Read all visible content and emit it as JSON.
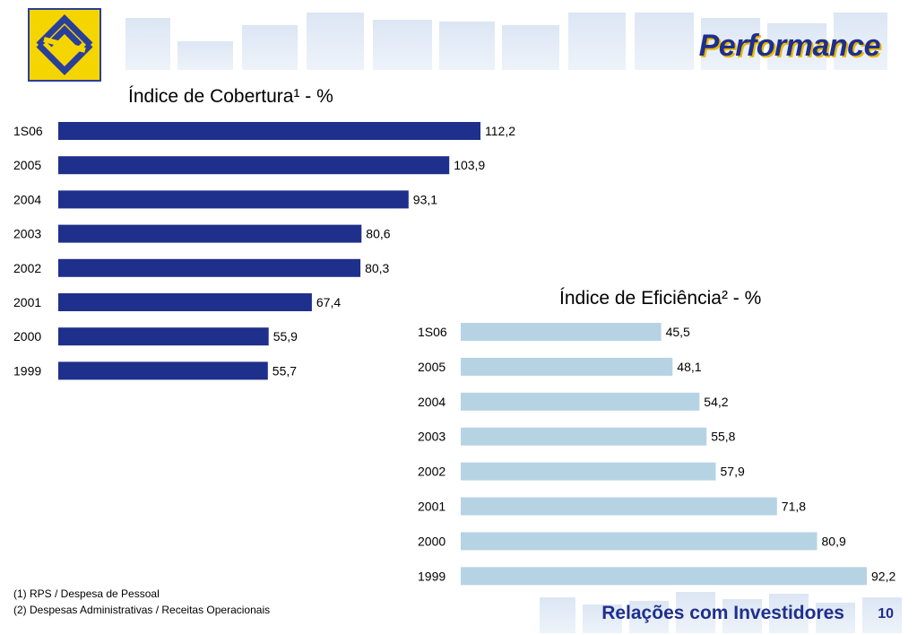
{
  "header": {
    "title": "Performance"
  },
  "chart_data": [
    {
      "type": "bar",
      "orientation": "horizontal",
      "title": "Índice de Cobertura¹ - %",
      "categories": [
        "1S06",
        "2005",
        "2004",
        "2003",
        "2002",
        "2001",
        "2000",
        "1999"
      ],
      "values": [
        112.2,
        103.9,
        93.1,
        80.6,
        80.3,
        67.4,
        55.9,
        55.7
      ],
      "value_labels": [
        "112,2",
        "103,9",
        "93,1",
        "80,6",
        "80,3",
        "67,4",
        "55,9",
        "55,7"
      ],
      "color": "#1f2f8c",
      "xlim": [
        0,
        112.2
      ]
    },
    {
      "type": "bar",
      "orientation": "horizontal",
      "title": "Índice de Eficiência² - %",
      "categories": [
        "1S06",
        "2005",
        "2004",
        "2003",
        "2002",
        "2001",
        "2000",
        "1999"
      ],
      "values": [
        45.5,
        48.1,
        54.2,
        55.8,
        57.9,
        71.8,
        80.9,
        92.2
      ],
      "value_labels": [
        "45,5",
        "48,1",
        "54,2",
        "55,8",
        "57,9",
        "71,8",
        "80,9",
        "92,2"
      ],
      "color": "#b6d3e4",
      "xlim": [
        0,
        92.2
      ]
    }
  ],
  "footnotes": [
    "(1) RPS / Despesa de Pessoal",
    "(2) Despesas Administrativas / Receitas Operacionais"
  ],
  "footer": {
    "label": "Relações com Investidores",
    "page": "10"
  }
}
